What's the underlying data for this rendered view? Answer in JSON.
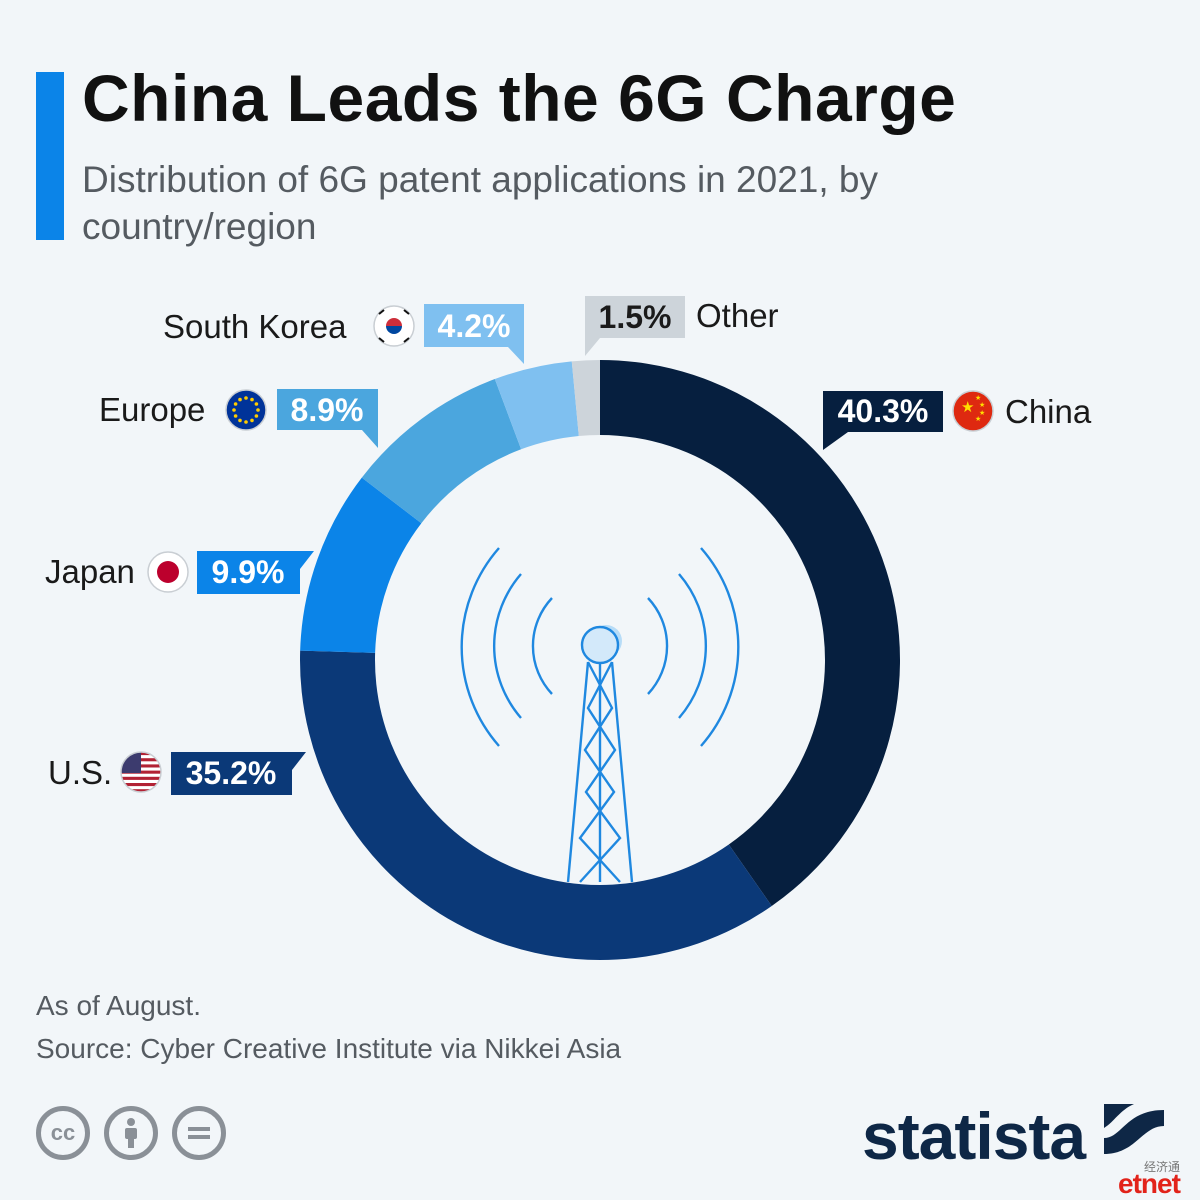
{
  "header": {
    "title": "China Leads the 6G Charge",
    "subtitle": "Distribution of 6G patent applications in 2021, by country/region"
  },
  "chart_data": {
    "type": "pie",
    "title": "China Leads the 6G Charge",
    "subtitle": "Distribution of 6G patent applications in 2021, by country/region",
    "slices": [
      {
        "name": "China",
        "value": 40.3,
        "label": "40.3%",
        "color": "#061f3f",
        "flag": "china-flag-icon"
      },
      {
        "name": "U.S.",
        "value": 35.2,
        "label": "35.2%",
        "color": "#0b3978",
        "flag": "us-flag-icon"
      },
      {
        "name": "Japan",
        "value": 9.9,
        "label": "9.9%",
        "color": "#0b84e8",
        "flag": "japan-flag-icon"
      },
      {
        "name": "Europe",
        "value": 8.9,
        "label": "8.9%",
        "color": "#4ba6de",
        "flag": "eu-flag-icon"
      },
      {
        "name": "South Korea",
        "value": 4.2,
        "label": "4.2%",
        "color": "#7fc0f0",
        "flag": "south-korea-flag-icon"
      },
      {
        "name": "Other",
        "value": 1.5,
        "label": "1.5%",
        "color": "#cdd4da",
        "flag": ""
      }
    ],
    "legend": "none"
  },
  "footer": {
    "note": "As of August.",
    "source": "Source: Cyber Creative Institute via Nikkei Asia",
    "brand": "statista",
    "watermark_cn": "经济通",
    "watermark": "etnet"
  },
  "colors": {
    "accent": "#0b84e8",
    "brand": "#0e2746",
    "tower": "#1f88e0"
  },
  "icons": [
    "cc-icon",
    "attribution-icon",
    "no-derivatives-icon",
    "cell-tower-icon",
    "statista-logo-icon"
  ]
}
